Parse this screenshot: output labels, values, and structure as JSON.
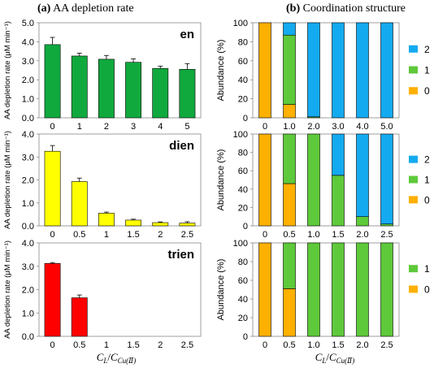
{
  "panel_a": {
    "letter": "(a)",
    "title": "AA depletion rate"
  },
  "panel_b": {
    "letter": "(b)",
    "title": "Coordination structure"
  },
  "x_axis_label": {
    "c1": "C",
    "s1": "L",
    "slash": "/",
    "c2": "C",
    "s2": "Cu(Ⅱ)"
  },
  "chart_data": [
    {
      "type": "bar",
      "panel": "a",
      "ligand": "en",
      "categories": [
        "0",
        "1",
        "2",
        "3",
        "4",
        "5"
      ],
      "values": [
        3.85,
        3.25,
        3.08,
        2.92,
        2.6,
        2.55
      ],
      "errors": [
        0.38,
        0.15,
        0.2,
        0.18,
        0.12,
        0.3
      ],
      "ylabel": "AA depletion rate (μM min⁻¹)",
      "ylim": [
        0,
        5.0
      ],
      "yticks": [
        "0.0",
        "1.0",
        "2.0",
        "3.0",
        "4.0",
        "5.0"
      ],
      "color": "#10a93e"
    },
    {
      "type": "bar",
      "panel": "a",
      "ligand": "dien",
      "categories": [
        "0",
        "0.5",
        "1",
        "1.5",
        "2",
        "2.5"
      ],
      "values": [
        3.25,
        1.93,
        0.55,
        0.25,
        0.14,
        0.12
      ],
      "errors": [
        0.25,
        0.15,
        0.05,
        0.04,
        0.03,
        0.06
      ],
      "ylabel": "AA depletion rate (μM min⁻¹)",
      "ylim": [
        0,
        4.0
      ],
      "yticks": [
        "0.0",
        "1.0",
        "2.0",
        "3.0",
        "4.0"
      ],
      "color": "#ffff00"
    },
    {
      "type": "bar",
      "panel": "a",
      "ligand": "trien",
      "categories": [
        "0",
        "0.5",
        "1",
        "1.5",
        "2",
        "2.5"
      ],
      "values": [
        3.12,
        1.65,
        0,
        0,
        0,
        0
      ],
      "errors": [
        0.04,
        0.12,
        0,
        0,
        0,
        0
      ],
      "ylabel": "AA depletion rate (μM min⁻¹)",
      "ylim": [
        0,
        4.0
      ],
      "yticks": [
        "0.0",
        "1.0",
        "2.0",
        "3.0",
        "4.0"
      ],
      "color": "#ff0000"
    },
    {
      "type": "bar",
      "stacked": true,
      "panel": "b",
      "ligand": "en",
      "categories": [
        "0",
        "1.0",
        "2.0",
        "3.0",
        "4.0",
        "5.0"
      ],
      "series": [
        {
          "name": "0",
          "values": [
            100,
            14,
            0,
            0,
            0,
            0
          ],
          "color": "#ffb000"
        },
        {
          "name": "1",
          "values": [
            0,
            73,
            1,
            0,
            0,
            0
          ],
          "color": "#5ec93a"
        },
        {
          "name": "2",
          "values": [
            0,
            13,
            99,
            100,
            100,
            100
          ],
          "color": "#14aaf0"
        }
      ],
      "ylabel": "Abundance (%)",
      "ylim": [
        0,
        100
      ],
      "yticks": [
        "0",
        "20",
        "40",
        "60",
        "80",
        "100"
      ]
    },
    {
      "type": "bar",
      "stacked": true,
      "panel": "b",
      "ligand": "dien",
      "categories": [
        "0",
        "0.5",
        "1.0",
        "1.5",
        "2.0",
        "2.5"
      ],
      "series": [
        {
          "name": "0",
          "values": [
            100,
            46,
            0,
            0,
            0,
            0
          ],
          "color": "#ffb000"
        },
        {
          "name": "1",
          "values": [
            0,
            54,
            100,
            55,
            10,
            2
          ],
          "color": "#5ec93a"
        },
        {
          "name": "2",
          "values": [
            0,
            0,
            0,
            45,
            90,
            98
          ],
          "color": "#14aaf0"
        }
      ],
      "ylabel": "Abundance (%)",
      "ylim": [
        0,
        100
      ],
      "yticks": [
        "0",
        "20",
        "40",
        "60",
        "80",
        "100"
      ]
    },
    {
      "type": "bar",
      "stacked": true,
      "panel": "b",
      "ligand": "trien",
      "categories": [
        "0",
        "0.5",
        "1.0",
        "1.5",
        "2.0",
        "2.5"
      ],
      "series": [
        {
          "name": "0",
          "values": [
            100,
            51,
            0,
            0,
            0,
            0
          ],
          "color": "#ffb000"
        },
        {
          "name": "1",
          "values": [
            0,
            49,
            100,
            100,
            100,
            100
          ],
          "color": "#5ec93a"
        }
      ],
      "ylabel": "Abundance (%)",
      "ylim": [
        0,
        100
      ],
      "yticks": [
        "0",
        "20",
        "40",
        "60",
        "80",
        "100"
      ]
    }
  ]
}
